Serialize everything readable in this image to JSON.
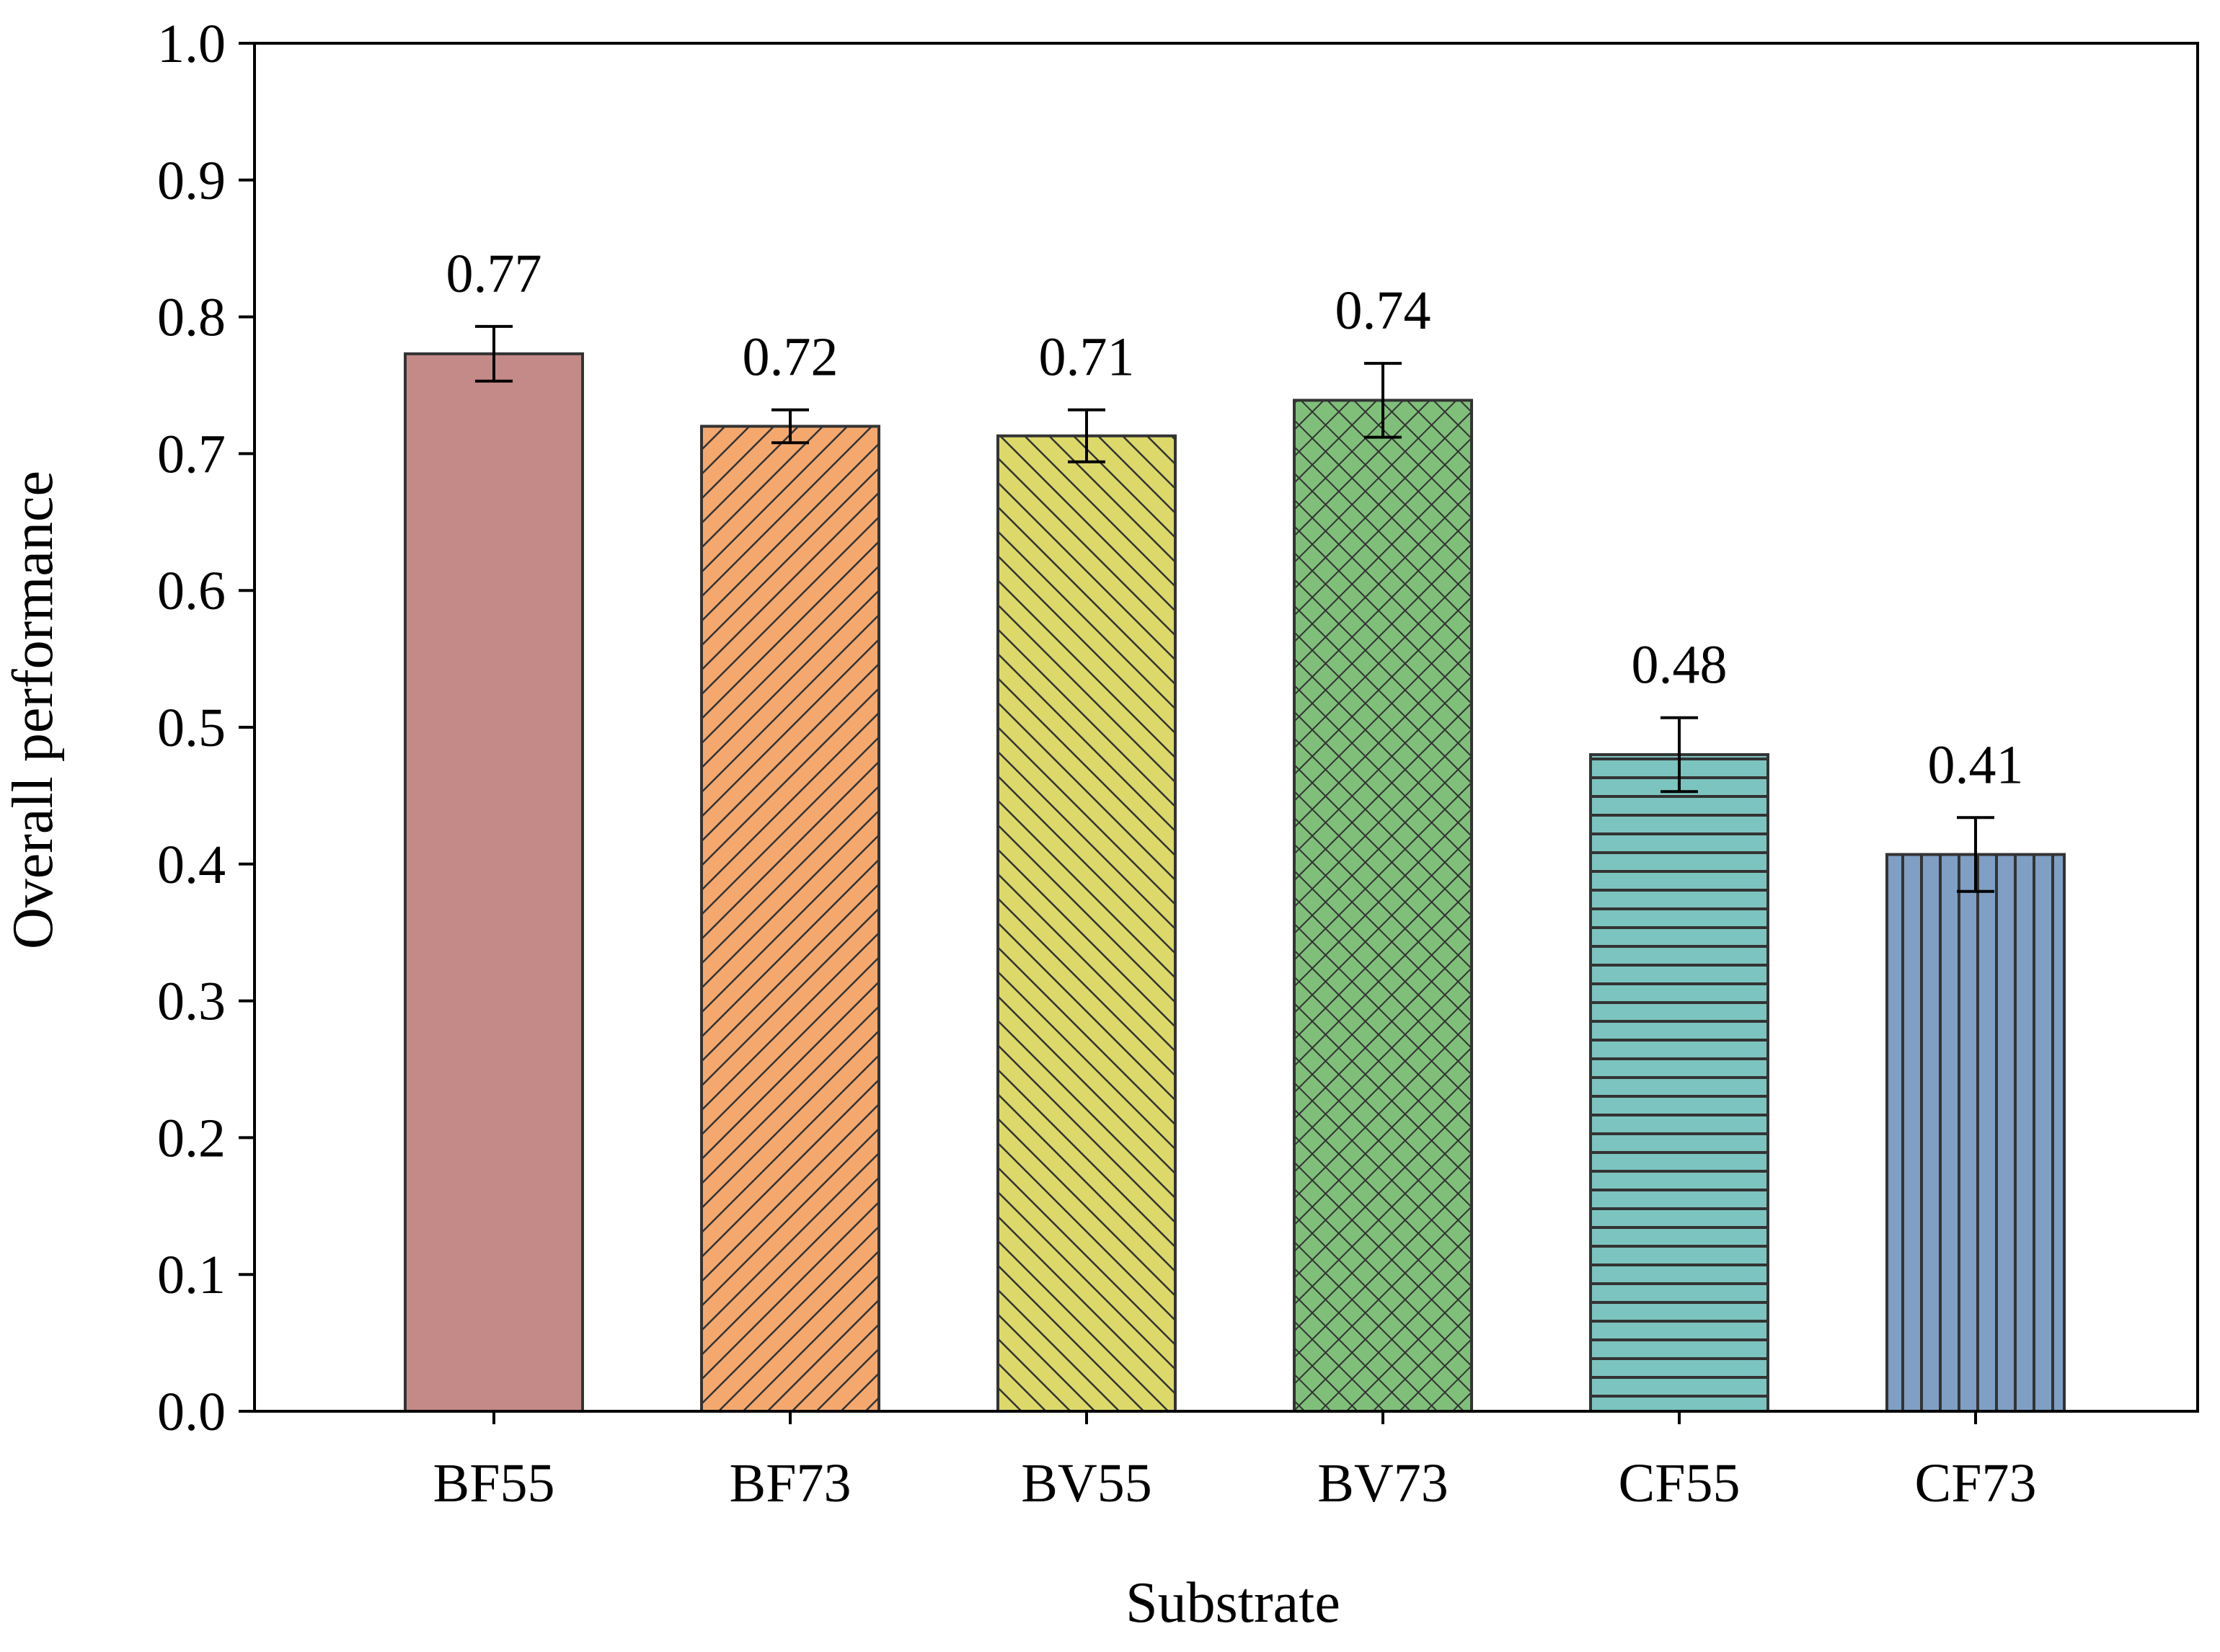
{
  "chart_data": {
    "type": "bar",
    "title": "",
    "xlabel": "Substrate",
    "ylabel": "Overall performance",
    "ylim": [
      0,
      1.0
    ],
    "yticks": [
      "0.0",
      "0.1",
      "0.2",
      "0.3",
      "0.4",
      "0.5",
      "0.6",
      "0.7",
      "0.8",
      "0.9",
      "1.0"
    ],
    "categories": [
      "BF55",
      "BF73",
      "BV55",
      "BV73",
      "CF55",
      "CF73"
    ],
    "values": [
      0.773,
      0.72,
      0.713,
      0.739,
      0.48,
      0.407
    ],
    "errors": [
      0.02,
      0.012,
      0.019,
      0.027,
      0.027,
      0.027
    ],
    "value_labels": [
      "0.77",
      "0.72",
      "0.71",
      "0.74",
      "0.48",
      "0.41"
    ],
    "colors": [
      "#c48a88",
      "#f5a86e",
      "#dcd96a",
      "#7fbf7a",
      "#7cc4bf",
      "#7f9fc4"
    ],
    "patterns": [
      "none",
      "diag-right",
      "diag-left",
      "crosshatch",
      "horizontal",
      "vertical"
    ],
    "grid": false,
    "legend": "none"
  }
}
